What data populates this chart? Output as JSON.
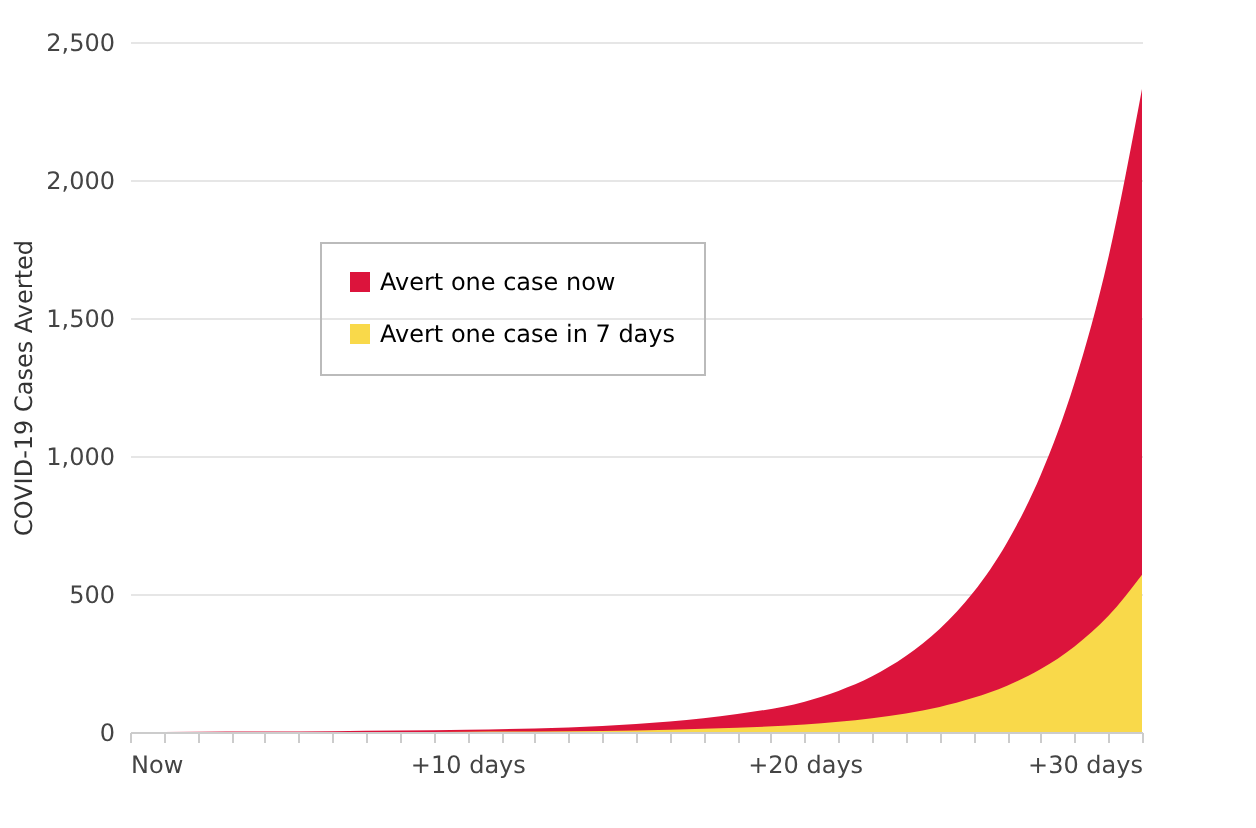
{
  "chart_data": {
    "type": "area",
    "ylabel": "COVID-19 Cases Averted",
    "x": [
      0,
      2,
      4,
      6,
      8,
      10,
      12,
      14,
      16,
      18,
      20,
      21,
      22,
      23,
      24,
      25,
      26,
      27,
      28,
      29,
      30
    ],
    "series": [
      {
        "name": "Avert one case now",
        "color": "#dc143c",
        "values": [
          0,
          1,
          2,
          3,
          5,
          8,
          13,
          22,
          38,
          65,
          110,
          149,
          202,
          275,
          373,
          506,
          687,
          932,
          1265,
          1717,
          2330
        ]
      },
      {
        "name": "Avert one case in 7 days",
        "color": "#f9d94a",
        "values": [
          0,
          0,
          0,
          0,
          0,
          1,
          2,
          4,
          8,
          15,
          27,
          37,
          50,
          67,
          91,
          124,
          168,
          228,
          310,
          420,
          570
        ]
      }
    ],
    "stacked": false,
    "xlim": [
      0,
      30
    ],
    "xticks": [
      {
        "value": 0,
        "label": "Now"
      },
      {
        "value": 1,
        "label": null
      },
      {
        "value": 2,
        "label": null
      },
      {
        "value": 3,
        "label": null
      },
      {
        "value": 4,
        "label": null
      },
      {
        "value": 5,
        "label": null
      },
      {
        "value": 6,
        "label": null
      },
      {
        "value": 7,
        "label": null
      },
      {
        "value": 8,
        "label": null
      },
      {
        "value": 9,
        "label": null
      },
      {
        "value": 10,
        "label": "+10 days"
      },
      {
        "value": 11,
        "label": null
      },
      {
        "value": 12,
        "label": null
      },
      {
        "value": 13,
        "label": null
      },
      {
        "value": 14,
        "label": null
      },
      {
        "value": 15,
        "label": null
      },
      {
        "value": 16,
        "label": null
      },
      {
        "value": 17,
        "label": null
      },
      {
        "value": 18,
        "label": null
      },
      {
        "value": 19,
        "label": null
      },
      {
        "value": 20,
        "label": "+20 days"
      },
      {
        "value": 21,
        "label": null
      },
      {
        "value": 22,
        "label": null
      },
      {
        "value": 23,
        "label": null
      },
      {
        "value": 24,
        "label": null
      },
      {
        "value": 25,
        "label": null
      },
      {
        "value": 26,
        "label": null
      },
      {
        "value": 27,
        "label": null
      },
      {
        "value": 28,
        "label": null
      },
      {
        "value": 29,
        "label": null
      },
      {
        "value": 30,
        "label": "+30 days"
      }
    ],
    "ylim": [
      0,
      2500
    ],
    "yticks": [
      0,
      500,
      {
        "value": 1000,
        "label": "1,000"
      },
      {
        "value": 1500,
        "label": "1,500"
      },
      {
        "value": 2000,
        "label": "2,000"
      },
      {
        "value": 2500,
        "label": "2,500"
      }
    ],
    "grid": "y",
    "legend": "center"
  }
}
